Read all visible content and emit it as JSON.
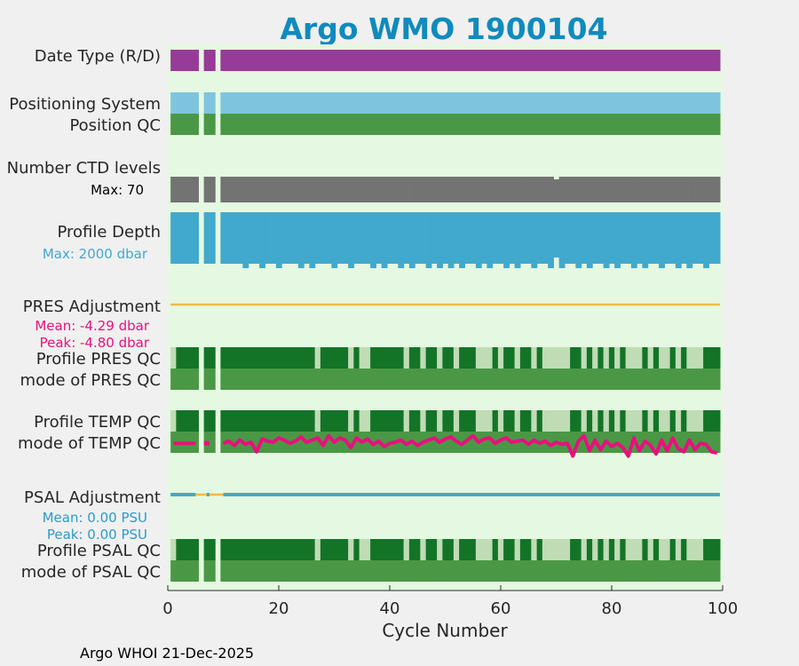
{
  "title": "Argo WMO 1900104",
  "footer": "Argo WHOI 21-Dec-2025",
  "colors": {
    "plot_bg": "#e5f8e1",
    "page_bg": "#f0f0f0",
    "title": "#0f8bbd",
    "data_type": "#983a98",
    "positioning": "#7ec4de",
    "pos_qc": "#4a9845",
    "ctd": "#737373",
    "depth": "#41a9cd",
    "qc_good": "#137428",
    "qc_light": "#c0dcb5",
    "qc_mode": "#4a9845",
    "adjust_line": "#f0b94b",
    "psal_line": "#41a9cd",
    "temp_line": "#e8107e",
    "pres_text": "#e8107e",
    "psal_text": "#2b9bc9"
  },
  "chart_data": {
    "type": "status-strip",
    "xlabel": "Cycle Number",
    "xlim": [
      0,
      100
    ],
    "xticks": [
      0,
      20,
      40,
      60,
      80,
      100
    ],
    "missing_cycles": [
      6,
      9
    ],
    "rows": {
      "data_type": {
        "label": "Date Type (R/D)"
      },
      "positioning": {
        "label": "Positioning System"
      },
      "position_qc": {
        "label": "Position QC"
      },
      "ctd_levels": {
        "label": "Number CTD levels",
        "max_label": "Max: 70",
        "max": 70
      },
      "profile_depth": {
        "label": "Profile Depth",
        "max_label": "Max: 2000 dbar",
        "max": 2000
      },
      "pres_adjustment": {
        "label": "PRES Adjustment",
        "mean_label": "Mean: -4.29 dbar",
        "peak_label": "Peak: -4.80 dbar",
        "mean": -4.29,
        "peak": -4.8
      },
      "profile_pres_qc": {
        "label": "Profile PRES QC"
      },
      "mode_pres_qc": {
        "label": "mode of PRES QC"
      },
      "profile_temp_qc": {
        "label": "Profile TEMP QC"
      },
      "mode_temp_qc": {
        "label": "mode of TEMP QC"
      },
      "psal_adjustment": {
        "label": "PSAL Adjustment",
        "mean_label": "Mean: 0.00 PSU",
        "peak_label": "Peak: 0.00 PSU",
        "mean": 0.0,
        "peak": 0.0
      },
      "profile_psal_qc": {
        "label": "Profile PSAL QC"
      },
      "mode_psal_qc": {
        "label": "mode of PSAL QC"
      }
    },
    "profile_qc_light_ranges": [
      [
        27,
        28
      ],
      [
        33,
        34
      ],
      [
        35,
        37
      ],
      [
        43,
        44
      ],
      [
        46,
        47
      ],
      [
        49,
        50
      ],
      [
        52,
        53
      ],
      [
        56,
        59
      ],
      [
        60,
        61
      ],
      [
        63,
        64
      ],
      [
        66,
        67
      ],
      [
        68,
        73
      ],
      [
        75,
        76
      ],
      [
        77,
        78
      ],
      [
        79,
        80
      ],
      [
        81,
        82
      ],
      [
        83,
        86
      ],
      [
        87,
        88
      ],
      [
        89,
        91
      ],
      [
        92,
        93
      ],
      [
        94,
        97
      ]
    ],
    "profile_qc_first_light_cycle": 1,
    "shallow_cycles": [
      1,
      2,
      3,
      4,
      5,
      7,
      8,
      10,
      11,
      12,
      13,
      15,
      16,
      18,
      19,
      21,
      22,
      23,
      25,
      27,
      28,
      29,
      31,
      32,
      34,
      35,
      36,
      38,
      40,
      41,
      43,
      45,
      46,
      48,
      50,
      52,
      54,
      55,
      57,
      59,
      60,
      62,
      64,
      65,
      67,
      68,
      72,
      73,
      75,
      77,
      78,
      80,
      82,
      83,
      85,
      87,
      88,
      90,
      91,
      93,
      95,
      96,
      98,
      99
    ],
    "ctd_dip_cycle": 70,
    "depth_bump_cycle": 70,
    "temp_series": [
      0.45,
      0.45,
      0.45,
      0.45,
      0.45,
      null,
      0.45,
      null,
      null,
      0.45,
      0.55,
      0.35,
      0.6,
      0.4,
      0.5,
      0.05,
      0.65,
      0.55,
      0.5,
      0.7,
      0.6,
      0.45,
      0.55,
      0.75,
      0.5,
      0.6,
      0.7,
      0.35,
      0.8,
      0.5,
      0.7,
      0.6,
      0.25,
      0.7,
      0.5,
      0.65,
      0.4,
      0.55,
      0.3,
      0.45,
      0.5,
      0.6,
      0.4,
      0.55,
      0.35,
      0.5,
      0.6,
      0.7,
      0.5,
      0.65,
      0.75,
      0.55,
      0.4,
      0.6,
      0.8,
      0.5,
      0.65,
      0.7,
      0.45,
      0.6,
      0.7,
      0.5,
      0.55,
      0.6,
      0.4,
      0.6,
      0.45,
      0.55,
      0.35,
      0.5,
      0.4,
      0.45,
      -0.15,
      0.55,
      0.8,
      0.1,
      0.6,
      0.15,
      0.55,
      0.3,
      0.45,
      0.25,
      -0.15,
      0.7,
      0.1,
      0.55,
      0.35,
      -0.05,
      0.6,
      0.1,
      0.7,
      0.2,
      0.05,
      0.6,
      0.15,
      0.45,
      0.4,
      0.05,
      0.0
    ]
  }
}
